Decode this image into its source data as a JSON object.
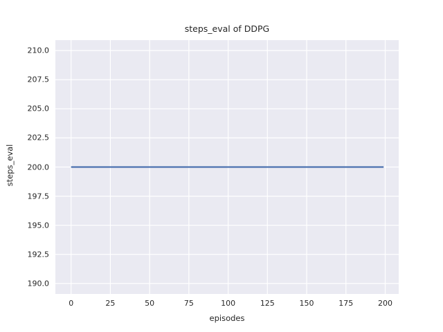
{
  "chart_data": {
    "type": "line",
    "title": "steps_eval of DDPG",
    "xlabel": "episodes",
    "ylabel": "steps_eval",
    "xlim": [
      -10.0,
      208.6
    ],
    "ylim": [
      189.1,
      210.9
    ],
    "grid": true,
    "legend_position": "none",
    "xticks": [
      {
        "value": 0,
        "label": "0"
      },
      {
        "value": 25,
        "label": "25"
      },
      {
        "value": 50,
        "label": "50"
      },
      {
        "value": 75,
        "label": "75"
      },
      {
        "value": 100,
        "label": "100"
      },
      {
        "value": 125,
        "label": "125"
      },
      {
        "value": 150,
        "label": "150"
      },
      {
        "value": 175,
        "label": "175"
      },
      {
        "value": 200,
        "label": "200"
      }
    ],
    "yticks": [
      {
        "value": 190.0,
        "label": "190.0"
      },
      {
        "value": 192.5,
        "label": "192.5"
      },
      {
        "value": 195.0,
        "label": "195.0"
      },
      {
        "value": 197.5,
        "label": "197.5"
      },
      {
        "value": 200.0,
        "label": "200.0"
      },
      {
        "value": 202.5,
        "label": "202.5"
      },
      {
        "value": 205.0,
        "label": "205.0"
      },
      {
        "value": 207.5,
        "label": "207.5"
      },
      {
        "value": 210.0,
        "label": "210.0"
      }
    ],
    "series": [
      {
        "name": "steps_eval",
        "color": "#4C72B0",
        "line_width": 2.2,
        "x": [
          0,
          199
        ],
        "y": [
          200,
          200
        ],
        "description": "constant value 200 for every episode from 0 to 199"
      }
    ],
    "style": {
      "axes_background": "#EAEAF2",
      "grid_color": "#FFFFFF",
      "figure_background": "#FFFFFF",
      "text_color": "#262626"
    }
  }
}
